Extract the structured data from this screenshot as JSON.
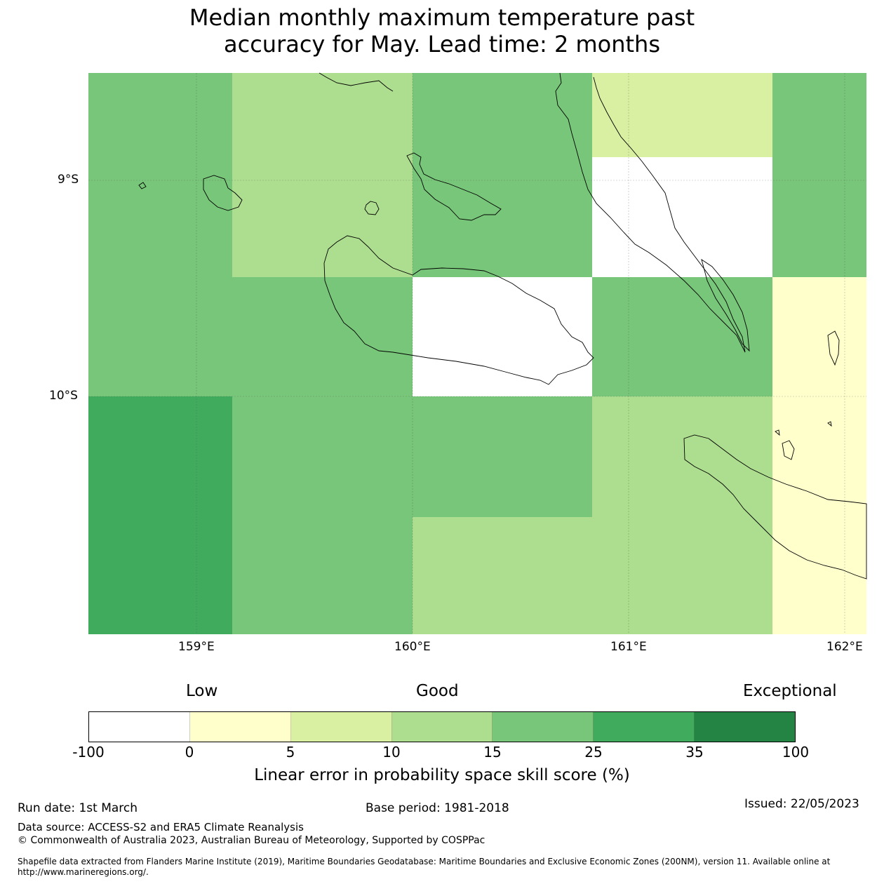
{
  "title_line1": "Median monthly maximum temperature past",
  "title_line2": "accuracy for May. Lead time: 2 months",
  "map": {
    "lat_labels": [
      "9°S",
      "10°S"
    ],
    "lon_labels": [
      "159°E",
      "160°E",
      "161°E",
      "162°E"
    ]
  },
  "colorbar": {
    "levels": [
      "Low",
      "Good",
      "Exceptional"
    ],
    "ticks": [
      "-100",
      "0",
      "5",
      "10",
      "15",
      "25",
      "35",
      "100"
    ],
    "colors": [
      "#ffffff",
      "#ffffcc",
      "#d9f0a3",
      "#addd8e",
      "#78c679",
      "#41ab5d",
      "#238443"
    ],
    "label": "Linear error in probability space skill score (%)"
  },
  "footer": {
    "run_date": "Run date: 1st March",
    "base_period": "Base period: 1981-2018",
    "issued": "Issued: 22/05/2023",
    "data_source": "Data source: ACCESS-S2 and ERA5 Climate Reanalysis",
    "copyright": "© Commonwealth of Australia 2023, Australian Bureau of Meteorology, Supported by COSPPac",
    "shapefile_line1": "Shapefile data extracted from Flanders Marine Institute (2019), Maritime Boundaries Geodatabase: Maritime Boundaries and Exclusive Economic Zones (200NM), version 11. Available online at",
    "shapefile_line2": "http://www.marineregions.org/."
  }
}
